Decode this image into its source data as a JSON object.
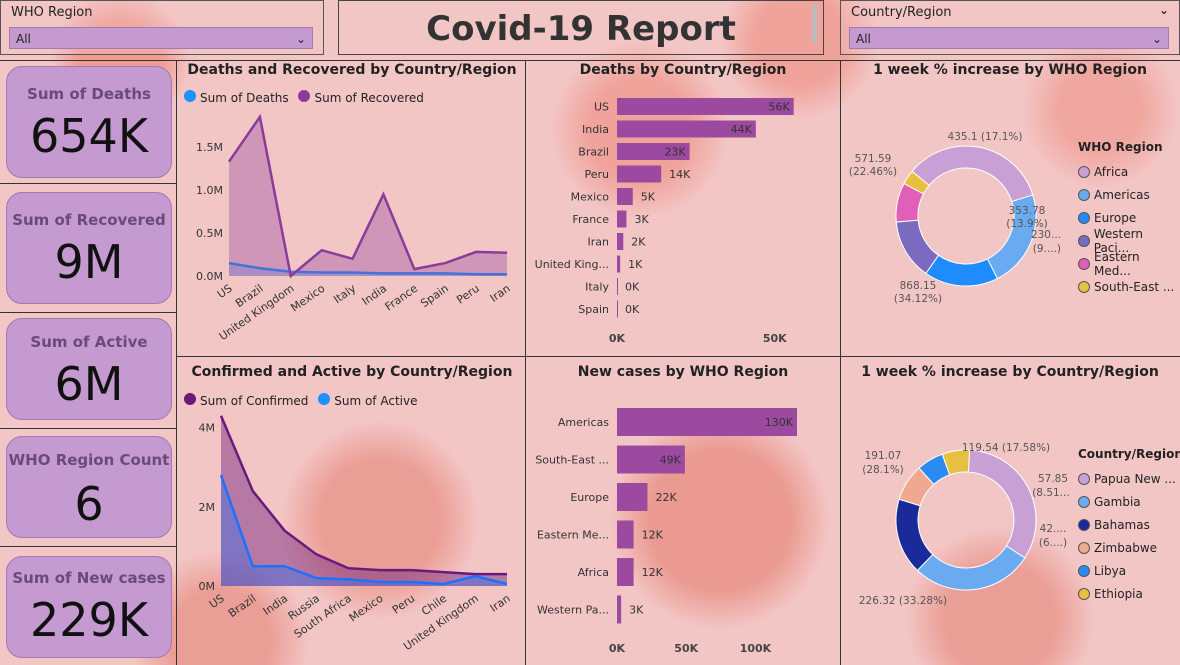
{
  "slicers": {
    "who_region": {
      "label": "WHO Region",
      "value": "All"
    },
    "country_region": {
      "label": "Country/Region",
      "value": "All"
    }
  },
  "report_title": "Covid-19 Report",
  "kpis": [
    {
      "label": "Sum of Deaths",
      "value": "654K"
    },
    {
      "label": "Sum of Recovered",
      "value": "9M"
    },
    {
      "label": "Sum of Active",
      "value": "6M"
    },
    {
      "label": "WHO Region Count",
      "value": "6"
    },
    {
      "label": "Sum of New cases",
      "value": "229K"
    }
  ],
  "colors": {
    "purple": "#8b3b9a",
    "blue": "#1e90ff",
    "bar": "#9b4a9f",
    "dark_purple": "#6a1a7a"
  },
  "charts": {
    "deaths_recovered": {
      "title": "Deaths and Recovered by Country/Region",
      "legend": [
        "Sum of Deaths",
        "Sum of Recovered"
      ],
      "yticks": [
        "0.0M",
        "0.5M",
        "1.0M",
        "1.5M"
      ],
      "ymax": 2.0
    },
    "deaths_by_country": {
      "title": "Deaths by Country/Region",
      "xticks": [
        "0K",
        "50K"
      ]
    },
    "week_increase_region": {
      "title": "1 week % increase by WHO Region",
      "legend_title": "WHO Region",
      "legend": [
        "Africa",
        "Americas",
        "Europe",
        "Western Paci...",
        "Eastern Med...",
        "South-East ..."
      ],
      "labels": [
        "435.1 (17.1%)",
        "353.78",
        "(13.9%)",
        "230...",
        "(9....)",
        "868.15",
        "(34.12%)",
        "571.59",
        "(22.46%)"
      ]
    },
    "confirmed_active": {
      "title": "Confirmed and Active by Country/Region",
      "legend": [
        "Sum of Confirmed",
        "Sum of Active"
      ],
      "yticks": [
        "0M",
        "2M",
        "4M"
      ]
    },
    "new_cases_region": {
      "title": "New cases by WHO Region",
      "xticks": [
        "0K",
        "50K",
        "100K"
      ]
    },
    "week_increase_country": {
      "title": "1 week % increase by Country/Region",
      "legend_title": "Country/Region",
      "legend": [
        "Papua New ...",
        "Gambia",
        "Bahamas",
        "Zimbabwe",
        "Libya",
        "Ethiopia"
      ],
      "labels": [
        "119.54 (17.58%)",
        "57.85",
        "(8.51...)",
        "42....",
        "(6....)",
        "226.32 (33.28%)",
        "191.07",
        "(28.1%)"
      ]
    }
  },
  "chart_data": [
    {
      "type": "area",
      "title": "Deaths and Recovered by Country/Region",
      "categories": [
        "US",
        "Brazil",
        "United Kingdom",
        "Mexico",
        "Italy",
        "India",
        "France",
        "Spain",
        "Peru",
        "Iran"
      ],
      "series": [
        {
          "name": "Sum of Deaths",
          "values": [
            0.15,
            0.09,
            0.05,
            0.04,
            0.04,
            0.03,
            0.03,
            0.03,
            0.02,
            0.02
          ]
        },
        {
          "name": "Sum of Recovered",
          "values": [
            1.33,
            1.85,
            0.0,
            0.3,
            0.2,
            0.95,
            0.08,
            0.15,
            0.28,
            0.27
          ]
        }
      ],
      "ylim": [
        0,
        2.0
      ]
    },
    {
      "type": "bar",
      "title": "Deaths by Country/Region",
      "categories": [
        "US",
        "India",
        "Brazil",
        "Peru",
        "Mexico",
        "France",
        "Iran",
        "United King...",
        "Italy",
        "Spain"
      ],
      "values": [
        56,
        44,
        23,
        14,
        5,
        3,
        2,
        1,
        0,
        0
      ],
      "value_labels": [
        "56K",
        "44K",
        "23K",
        "14K",
        "5K",
        "3K",
        "2K",
        "1K",
        "0K",
        "0K"
      ],
      "xlim": [
        0,
        58
      ]
    },
    {
      "type": "pie",
      "title": "1 week % increase by WHO Region",
      "categories": [
        "Africa",
        "Americas",
        "Europe",
        "Western Pacific",
        "Eastern Mediterranean",
        "South-East Asia"
      ],
      "values": [
        868.15,
        571.59,
        435.1,
        353.78,
        230,
        85
      ],
      "colors": [
        "#c9a0d6",
        "#6aaaf0",
        "#1e8cff",
        "#7a6ac0",
        "#e060b8",
        "#e8c040"
      ]
    },
    {
      "type": "area",
      "title": "Confirmed and Active by Country/Region",
      "categories": [
        "US",
        "Brazil",
        "India",
        "Russia",
        "South Africa",
        "Mexico",
        "Peru",
        "Chile",
        "United Kingdom",
        "Iran"
      ],
      "series": [
        {
          "name": "Sum of Confirmed",
          "values": [
            4.3,
            2.4,
            1.4,
            0.8,
            0.45,
            0.4,
            0.4,
            0.35,
            0.3,
            0.3
          ]
        },
        {
          "name": "Sum of Active",
          "values": [
            2.8,
            0.5,
            0.5,
            0.2,
            0.17,
            0.1,
            0.1,
            0.05,
            0.25,
            0.05
          ]
        }
      ],
      "ylim": [
        0,
        4.8
      ]
    },
    {
      "type": "bar",
      "title": "New cases by WHO Region",
      "categories": [
        "Americas",
        "South-East ...",
        "Europe",
        "Eastern Me...",
        "Africa",
        "Western Pa..."
      ],
      "values": [
        130,
        49,
        22,
        12,
        12,
        3
      ],
      "value_labels": [
        "130K",
        "49K",
        "22K",
        "12K",
        "12K",
        "3K"
      ],
      "xlim": [
        0,
        130
      ]
    },
    {
      "type": "pie",
      "title": "1 week % increase by Country/Region",
      "categories": [
        "Papua New Guinea",
        "Gambia",
        "Bahamas",
        "Zimbabwe",
        "Libya",
        "Ethiopia"
      ],
      "values": [
        226.32,
        191.07,
        119.54,
        57.85,
        42,
        43
      ],
      "colors": [
        "#c9a0d6",
        "#6aaaf0",
        "#1a2a9a",
        "#f0a890",
        "#2a8cf0",
        "#e8c040"
      ]
    }
  ]
}
